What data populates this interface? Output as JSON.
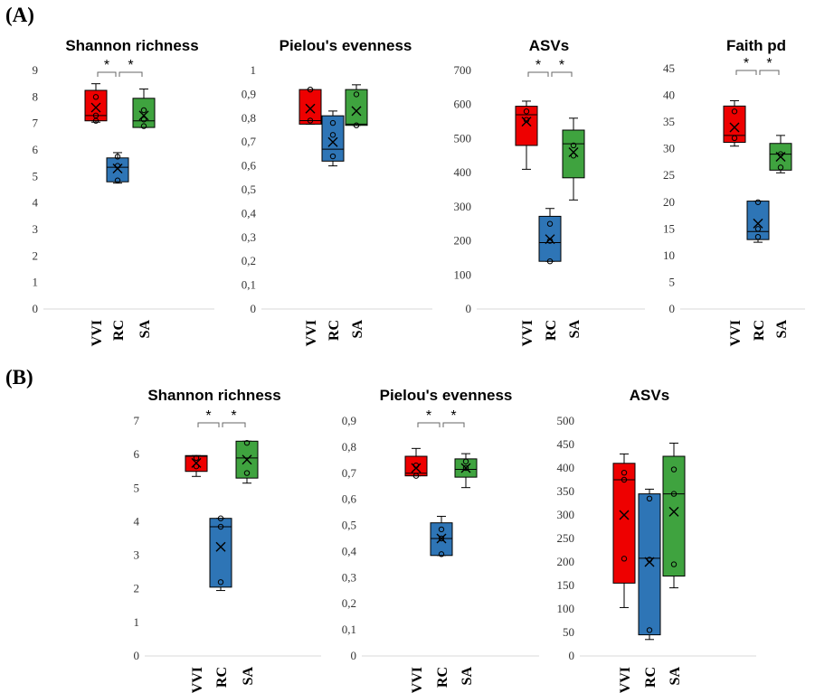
{
  "panel_labels": [
    "(A)",
    "(B)"
  ],
  "chart_data": [
    {
      "panel": "(A)",
      "type": "box",
      "title": "Shannon richness",
      "ylim": [
        0,
        9
      ],
      "yticks": [
        "0",
        "1",
        "2",
        "3",
        "4",
        "5",
        "6",
        "7",
        "8",
        "9"
      ],
      "categories": [
        "VVI",
        "RC",
        "SA"
      ],
      "colors": [
        "#ee0000",
        "#2e75b6",
        "#3fa33f"
      ],
      "boxes": [
        {
          "min": 7.05,
          "q1": 7.1,
          "median": 7.3,
          "q3": 8.25,
          "max": 8.5,
          "mean": 7.6,
          "points": [
            7.1,
            7.3,
            8.0
          ]
        },
        {
          "min": 4.75,
          "q1": 4.8,
          "median": 5.35,
          "q3": 5.7,
          "max": 5.9,
          "mean": 5.3,
          "points": [
            4.85,
            5.4,
            5.75
          ]
        },
        {
          "min": 6.85,
          "q1": 6.85,
          "median": 7.1,
          "q3": 7.95,
          "max": 8.3,
          "mean": 7.3,
          "points": [
            6.9,
            7.15,
            7.5
          ]
        }
      ],
      "significance": [
        {
          "from": 0,
          "to": 1,
          "label": "*"
        },
        {
          "from": 1,
          "to": 2,
          "label": "*"
        }
      ]
    },
    {
      "panel": "(A)",
      "type": "box",
      "title": "Pielou's evenness",
      "ylim": [
        0,
        1
      ],
      "yticks": [
        "0",
        "0,1",
        "0,2",
        "0,3",
        "0,4",
        "0,5",
        "0,6",
        "0,7",
        "0,8",
        "0,9",
        "1"
      ],
      "categories": [
        "VVI",
        "RC",
        "SA"
      ],
      "colors": [
        "#ee0000",
        "#2e75b6",
        "#3fa33f"
      ],
      "boxes": [
        {
          "min": 0.775,
          "q1": 0.775,
          "median": 0.79,
          "q3": 0.92,
          "max": 0.92,
          "mean": 0.84,
          "points": [
            0.79,
            0.92
          ]
        },
        {
          "min": 0.6,
          "q1": 0.62,
          "median": 0.67,
          "q3": 0.81,
          "max": 0.83,
          "mean": 0.7,
          "points": [
            0.64,
            0.73,
            0.78
          ]
        },
        {
          "min": 0.77,
          "q1": 0.77,
          "median": 0.775,
          "q3": 0.92,
          "max": 0.94,
          "mean": 0.83,
          "points": [
            0.77,
            0.9
          ]
        }
      ],
      "significance": []
    },
    {
      "panel": "(A)",
      "type": "box",
      "title": "ASVs",
      "ylim": [
        0,
        700
      ],
      "yticks": [
        "0",
        "100",
        "200",
        "300",
        "400",
        "500",
        "600",
        "700"
      ],
      "categories": [
        "VVI",
        "RC",
        "SA"
      ],
      "colors": [
        "#ee0000",
        "#2e75b6",
        "#3fa33f"
      ],
      "boxes": [
        {
          "min": 410,
          "q1": 480,
          "median": 570,
          "q3": 595,
          "max": 610,
          "mean": 550,
          "points": [
            555,
            580
          ]
        },
        {
          "min": 140,
          "q1": 140,
          "median": 195,
          "q3": 272,
          "max": 295,
          "mean": 205,
          "points": [
            140,
            200,
            250
          ]
        },
        {
          "min": 320,
          "q1": 385,
          "median": 485,
          "q3": 525,
          "max": 560,
          "mean": 460,
          "points": [
            450,
            480
          ]
        }
      ],
      "significance": [
        {
          "from": 0,
          "to": 1,
          "label": "*"
        },
        {
          "from": 1,
          "to": 2,
          "label": "*"
        }
      ]
    },
    {
      "panel": "(A)",
      "type": "box",
      "title": "Faith pd",
      "ylim": [
        0,
        45
      ],
      "yticks": [
        "0",
        "5",
        "10",
        "15",
        "20",
        "25",
        "30",
        "35",
        "40",
        "45"
      ],
      "categories": [
        "VVI",
        "RC",
        "SA"
      ],
      "colors": [
        "#ee0000",
        "#2e75b6",
        "#3fa33f"
      ],
      "boxes": [
        {
          "min": 30.5,
          "q1": 31.2,
          "median": 32.5,
          "q3": 38,
          "max": 39,
          "mean": 34,
          "points": [
            32,
            37
          ]
        },
        {
          "min": 12.5,
          "q1": 13,
          "median": 14.5,
          "q3": 20.2,
          "max": 20.2,
          "mean": 16,
          "points": [
            13.5,
            15,
            20
          ]
        },
        {
          "min": 25.5,
          "q1": 26,
          "median": 29,
          "q3": 31,
          "max": 32.5,
          "mean": 28.5,
          "points": [
            26.5,
            29
          ]
        }
      ],
      "significance": [
        {
          "from": 0,
          "to": 1,
          "label": "*"
        },
        {
          "from": 1,
          "to": 2,
          "label": "*"
        }
      ]
    },
    {
      "panel": "(B)",
      "type": "box",
      "title": "Shannon richness",
      "ylim": [
        0,
        7
      ],
      "yticks": [
        "0",
        "1",
        "2",
        "3",
        "4",
        "5",
        "6",
        "7"
      ],
      "categories": [
        "VVI",
        "RC",
        "SA"
      ],
      "colors": [
        "#ee0000",
        "#2e75b6",
        "#3fa33f"
      ],
      "boxes": [
        {
          "min": 5.35,
          "q1": 5.5,
          "median": 5.95,
          "q3": 5.97,
          "max": 5.97,
          "mean": 5.75,
          "points": [
            5.65,
            5.9
          ]
        },
        {
          "min": 1.95,
          "q1": 2.05,
          "median": 3.85,
          "q3": 4.1,
          "max": 4.1,
          "mean": 3.25,
          "points": [
            2.2,
            3.85,
            4.1
          ]
        },
        {
          "min": 5.15,
          "q1": 5.3,
          "median": 5.9,
          "q3": 6.4,
          "max": 6.4,
          "mean": 5.85,
          "points": [
            5.45,
            6.35
          ]
        }
      ],
      "significance": [
        {
          "from": 0,
          "to": 1,
          "label": "*"
        },
        {
          "from": 1,
          "to": 2,
          "label": "*"
        }
      ]
    },
    {
      "panel": "(B)",
      "type": "box",
      "title": "Pielou's evenness",
      "ylim": [
        0,
        0.9
      ],
      "yticks": [
        "0",
        "0,1",
        "0,2",
        "0,3",
        "0,4",
        "0,5",
        "0,6",
        "0,7",
        "0,8",
        "0,9"
      ],
      "categories": [
        "VVI",
        "RC",
        "SA"
      ],
      "colors": [
        "#ee0000",
        "#2e75b6",
        "#3fa33f"
      ],
      "boxes": [
        {
          "min": 0.69,
          "q1": 0.69,
          "median": 0.7,
          "q3": 0.765,
          "max": 0.795,
          "mean": 0.72,
          "points": [
            0.69,
            0.73
          ]
        },
        {
          "min": 0.385,
          "q1": 0.385,
          "median": 0.45,
          "q3": 0.51,
          "max": 0.535,
          "mean": 0.45,
          "points": [
            0.39,
            0.45,
            0.485
          ]
        },
        {
          "min": 0.645,
          "q1": 0.685,
          "median": 0.715,
          "q3": 0.755,
          "max": 0.775,
          "mean": 0.72,
          "points": [
            0.72,
            0.745
          ]
        }
      ],
      "significance": [
        {
          "from": 0,
          "to": 1,
          "label": "*"
        },
        {
          "from": 1,
          "to": 2,
          "label": "*"
        }
      ]
    },
    {
      "panel": "(B)",
      "type": "box",
      "title": "ASVs",
      "ylim": [
        0,
        500
      ],
      "yticks": [
        "0",
        "50",
        "100",
        "150",
        "200",
        "250",
        "300",
        "350",
        "400",
        "450",
        "500"
      ],
      "categories": [
        "VVI",
        "RC",
        "SA"
      ],
      "colors": [
        "#ee0000",
        "#2e75b6",
        "#3fa33f"
      ],
      "boxes": [
        {
          "min": 103,
          "q1": 155,
          "median": 375,
          "q3": 410,
          "max": 430,
          "mean": 300,
          "points": [
            207,
            375,
            390
          ]
        },
        {
          "min": 35,
          "q1": 45,
          "median": 208,
          "q3": 345,
          "max": 355,
          "mean": 200,
          "points": [
            55,
            205,
            335
          ]
        },
        {
          "min": 145,
          "q1": 170,
          "median": 345,
          "q3": 425,
          "max": 453,
          "mean": 307,
          "points": [
            195,
            345,
            397
          ]
        }
      ],
      "significance": []
    }
  ]
}
